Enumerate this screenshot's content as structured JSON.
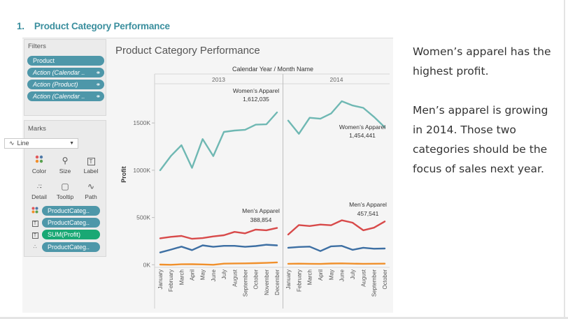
{
  "slide": {
    "number": "1.",
    "title": "Product Category Performance"
  },
  "filters": {
    "title": "Filters",
    "items": [
      {
        "label": "Product",
        "style": "normal"
      },
      {
        "label": "Action (Calendar ..",
        "style": "italic",
        "icon": "link-icon"
      },
      {
        "label": "Action (Product)",
        "style": "italic",
        "icon": "link-icon"
      },
      {
        "label": "Action (Calendar ..",
        "style": "italic",
        "icon": "link-icon"
      }
    ]
  },
  "marks": {
    "title": "Marks",
    "mark_type": "Line",
    "buttons": [
      {
        "label": "Color",
        "icon": "color-icon"
      },
      {
        "label": "Size",
        "icon": "size-icon"
      },
      {
        "label": "Label",
        "icon": "label-icon"
      },
      {
        "label": "Detail",
        "icon": "detail-icon"
      },
      {
        "label": "Tooltip",
        "icon": "tooltip-icon"
      },
      {
        "label": "Path",
        "icon": "path-icon"
      }
    ],
    "shelf": [
      {
        "label": "ProductCateg..",
        "icon": "color-icon",
        "color": "#4e97a9"
      },
      {
        "label": "ProductCateg..",
        "icon": "label-icon",
        "color": "#4e97a9"
      },
      {
        "label": "SUM(Profit)",
        "icon": "label-icon",
        "color": "#19a874"
      },
      {
        "label": "ProductCateg..",
        "icon": "detail-icon",
        "color": "#4e97a9"
      }
    ]
  },
  "viz_title": "Product Category Performance",
  "commentary": [
    "Women’s apparel has the highest profit.",
    "Men’s apparel is growing in 2014. Those two categories should be the focus of sales next year."
  ],
  "chart_data": {
    "type": "line",
    "title": "Product Category Performance",
    "column_header": "Calendar Year / Month Name",
    "ylabel": "Profit",
    "ylim": [
      -20000,
      1900000
    ],
    "yticks": [
      {
        "value": 0,
        "label": "0K"
      },
      {
        "value": 500000,
        "label": "500K"
      },
      {
        "value": 1000000,
        "label": "1000K"
      },
      {
        "value": 1500000,
        "label": "1500K"
      }
    ],
    "gridlines": false,
    "panes": [
      {
        "year": "2013",
        "months": [
          "January",
          "February",
          "March",
          "April",
          "May",
          "June",
          "July",
          "August",
          "September",
          "October",
          "November",
          "December"
        ],
        "series": [
          {
            "name": "Women’s Apparel",
            "color": "#6fb8b3",
            "values": [
              1000000,
              1150000,
              1265000,
              1025000,
              1330000,
              1150000,
              1405000,
              1420000,
              1428000,
              1482000,
              1486000,
              1612035
            ]
          },
          {
            "name": "Men’s Apparel",
            "color": "#d84a4a",
            "values": [
              280000,
              295000,
              305000,
              275000,
              282000,
              300000,
              312000,
              348000,
              332000,
              372000,
              365000,
              388854
            ]
          },
          {
            "name": "",
            "color": "#3d6fa3",
            "values": [
              130000,
              160000,
              192000,
              155000,
              205000,
              190000,
              200000,
              200000,
              190000,
              198000,
              212000,
              205000
            ]
          },
          {
            "name": "",
            "color": "#f0902c",
            "values": [
              2000,
              0,
              5000,
              6000,
              4000,
              0,
              12000,
              14000,
              15000,
              17000,
              20000,
              25000
            ]
          }
        ],
        "labels": [
          {
            "series": "Women’s Apparel",
            "value": "1,612,035"
          },
          {
            "series": "Men’s Apparel",
            "value": "388,854"
          }
        ]
      },
      {
        "year": "2014",
        "months": [
          "January",
          "February",
          "March",
          "April",
          "May",
          "June",
          "July",
          "August",
          "September",
          "October"
        ],
        "series": [
          {
            "name": "Women’s Apparel",
            "color": "#6fb8b3",
            "values": [
              1525000,
              1385000,
              1555000,
              1545000,
              1600000,
              1730000,
              1685000,
              1660000,
              1565000,
              1454441
            ]
          },
          {
            "name": "Men’s Apparel",
            "color": "#d84a4a",
            "values": [
              320000,
              420000,
              410000,
              425000,
              418000,
              470000,
              445000,
              365000,
              392000,
              457541
            ]
          },
          {
            "name": "",
            "color": "#3d6fa3",
            "values": [
              180000,
              188000,
              192000,
              145000,
              195000,
              200000,
              158000,
              180000,
              170000,
              172000
            ]
          },
          {
            "name": "",
            "color": "#f0902c",
            "values": [
              10000,
              12000,
              10000,
              9000,
              13000,
              15000,
              12000,
              10000,
              11000,
              12000
            ]
          }
        ],
        "labels": [
          {
            "series": "Women’s Apparel",
            "value": "1,454,441"
          },
          {
            "series": "Men’s Apparel",
            "value": "457,541"
          }
        ]
      }
    ]
  }
}
